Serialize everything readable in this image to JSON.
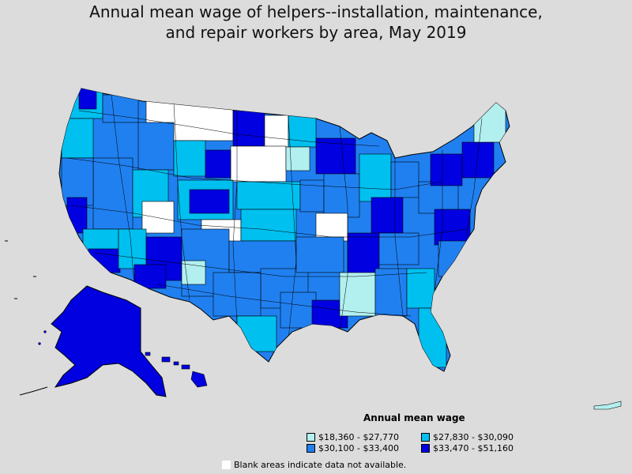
{
  "title_lines": [
    "Annual mean wage of helpers--installation, maintenance,",
    "and repair workers by area, May 2019"
  ],
  "legend": {
    "title": "Annual mean wage",
    "items": [
      {
        "label": "$18,360 - $27,770",
        "color": "#b2f0f0"
      },
      {
        "label": "$27,830 - $30,090",
        "color": "#00c0f0"
      },
      {
        "label": "$30,100 - $33,400",
        "color": "#2080f0"
      },
      {
        "label": "$33,470 - $51,160",
        "color": "#0000e0"
      }
    ]
  },
  "note": "Blank areas indicate data not available.",
  "colors": {
    "background": "#dcdcdc",
    "blank": "#ffffff",
    "border": "#000000"
  }
}
